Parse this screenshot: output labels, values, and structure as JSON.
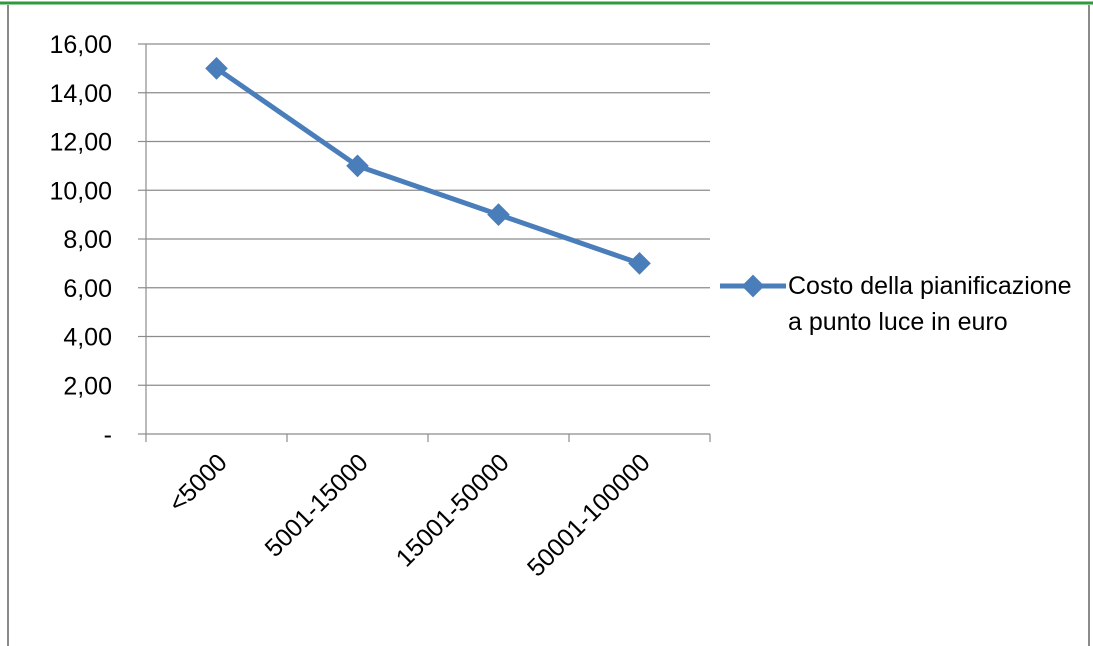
{
  "chart_data": {
    "type": "line",
    "categories": [
      "<5000",
      "5001-15000",
      "15001-50000",
      "50001-100000"
    ],
    "series": [
      {
        "name": "Costo della pianificazione a punto luce in euro",
        "values": [
          15,
          11,
          9,
          7
        ],
        "color": "#4a7ebb",
        "marker": "diamond"
      }
    ],
    "ylim": [
      0,
      16
    ],
    "yticks": [
      {
        "value": 0,
        "label": "-"
      },
      {
        "value": 2,
        "label": "2,00"
      },
      {
        "value": 4,
        "label": "4,00"
      },
      {
        "value": 6,
        "label": "6,00"
      },
      {
        "value": 8,
        "label": "8,00"
      },
      {
        "value": 10,
        "label": "10,00"
      },
      {
        "value": 12,
        "label": "12,00"
      },
      {
        "value": 14,
        "label": "14,00"
      },
      {
        "value": 16,
        "label": "16,00"
      }
    ],
    "grid": true,
    "legend": "right",
    "title": "",
    "xlabel": "",
    "ylabel": ""
  },
  "colors": {
    "frame_top": "#2e9a3c",
    "frame_side": "#8a8a8a",
    "gridline": "#8c8c8c",
    "axis": "#8c8c8c"
  }
}
